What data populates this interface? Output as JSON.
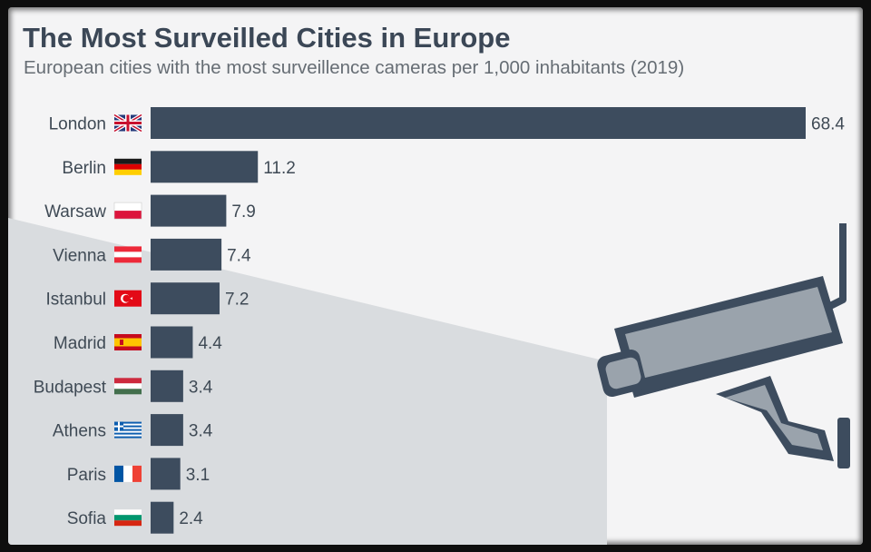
{
  "title": "The Most Surveilled Cities in Europe",
  "subtitle": "European cities with the most surveillence cameras per 1,000 inhabitants (2019)",
  "colors": {
    "bar": "#3d4c5e",
    "background": "#f4f4f5",
    "text": "#3b4756"
  },
  "chart_data": {
    "type": "bar",
    "orientation": "horizontal",
    "title": "The Most Surveilled Cities in Europe",
    "subtitle": "European cities with the most surveillence cameras per 1,000 inhabitants (2019)",
    "categories": [
      "London",
      "Berlin",
      "Warsaw",
      "Vienna",
      "Istanbul",
      "Madrid",
      "Budapest",
      "Athens",
      "Paris",
      "Sofia"
    ],
    "values": [
      68.4,
      11.2,
      7.9,
      7.4,
      7.2,
      4.4,
      3.4,
      3.4,
      3.1,
      2.4
    ],
    "value_labels": [
      "68.4",
      "11.2",
      "7.9",
      "7.4",
      "7.2",
      "4.4",
      "3.4",
      "3.4",
      "3.1",
      "2.4"
    ],
    "flags": [
      "uk-flag-icon",
      "germany-flag-icon",
      "poland-flag-icon",
      "austria-flag-icon",
      "turkey-flag-icon",
      "spain-flag-icon",
      "hungary-flag-icon",
      "greece-flag-icon",
      "france-flag-icon",
      "bulgaria-flag-icon"
    ],
    "xlim": [
      0,
      68.4
    ],
    "grid": false,
    "legend": "none"
  },
  "illustration": "surveillance-camera-icon"
}
